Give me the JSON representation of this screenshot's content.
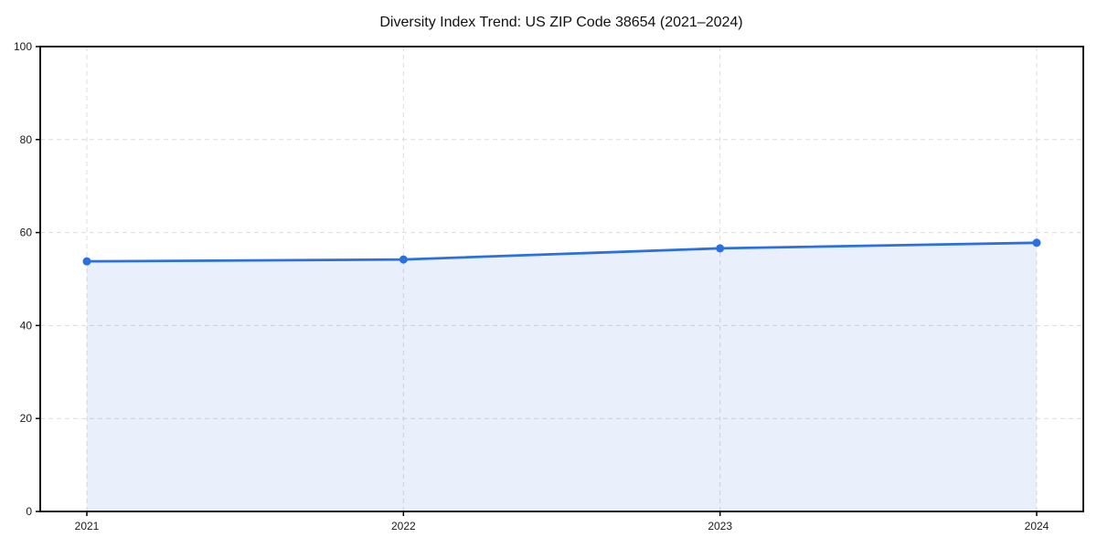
{
  "chart_data": {
    "type": "area",
    "title": "Diversity Index Trend: US ZIP Code 38654 (2021–2024)",
    "x": [
      2021,
      2022,
      2023,
      2024
    ],
    "series": [
      {
        "name": "Diversity Index",
        "values": [
          53.8,
          54.2,
          56.6,
          57.8
        ]
      }
    ],
    "xlabel": "",
    "ylabel": "",
    "ylim": [
      0,
      100
    ],
    "yticks": [
      0,
      20,
      40,
      60,
      80,
      100
    ],
    "grid": "dashed, both axes",
    "legend": "none",
    "colors": {
      "line": "#2b70e0",
      "marker": "#2b70e0",
      "fill": "#2b70e0",
      "fill_opacity": 0.1,
      "grid": "#dcdcdc",
      "axis": "#000000",
      "background": "#ffffff",
      "text": "#1a1a1a"
    }
  }
}
